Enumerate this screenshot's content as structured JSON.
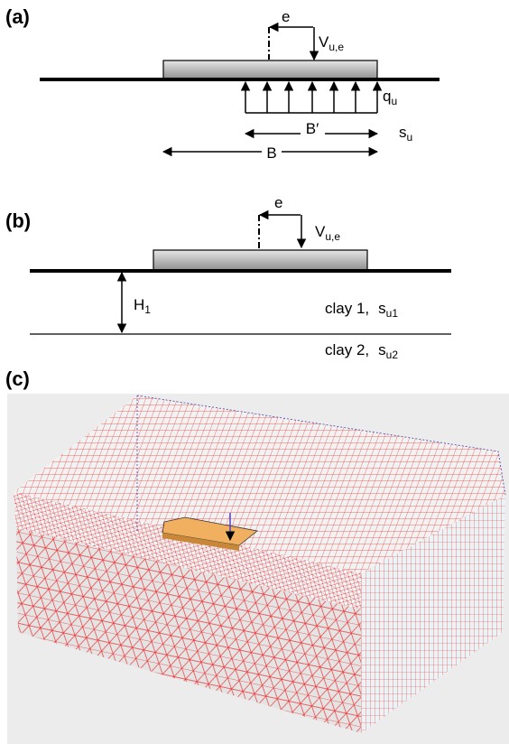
{
  "panels": [
    {
      "label": "(a)",
      "eccentricity": "e",
      "load": {
        "symbol": "V",
        "subscript": "u,e"
      },
      "pressure": {
        "symbol": "q",
        "subscript": "u"
      },
      "effective_width": "B′",
      "strength": {
        "symbol": "s",
        "subscript": "u"
      },
      "width": "B"
    },
    {
      "label": "(b)",
      "eccentricity": "e",
      "load": {
        "symbol": "V",
        "subscript": "u,e"
      },
      "thickness": {
        "symbol": "H",
        "subscript": "1"
      },
      "layers": [
        {
          "name": "clay 1,",
          "strength": {
            "symbol": "s",
            "subscript": "u1"
          }
        },
        {
          "name": "clay 2,",
          "strength": {
            "symbol": "s",
            "subscript": "u2"
          }
        }
      ]
    },
    {
      "label": "(c)"
    }
  ]
}
